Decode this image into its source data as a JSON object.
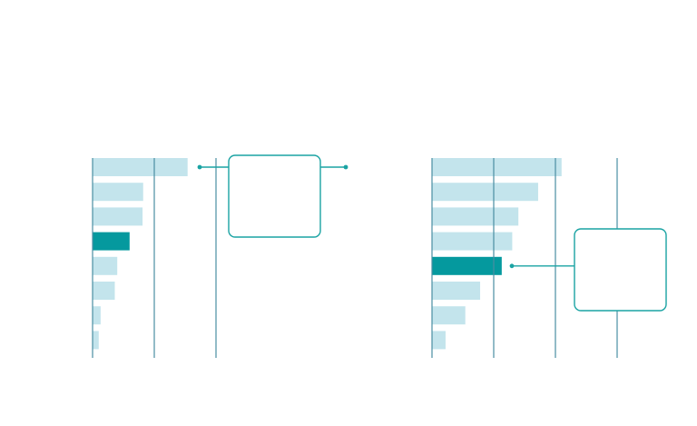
{
  "colors": {
    "background": "#ffffff",
    "bar": "#c3e4ec",
    "highlight": "#05999e",
    "axis": "#4a8ea2",
    "callout": "#1aa3a3"
  },
  "chart_data": [
    {
      "type": "bar",
      "orientation": "horizontal",
      "title": "",
      "xlabel": "",
      "ylabel": "",
      "grid": true,
      "xlim": [
        0,
        2
      ],
      "values": [
        1.54,
        0.82,
        0.81,
        0.6,
        0.4,
        0.36,
        0.13,
        0.1
      ],
      "highlight_index": 3,
      "callout_target_index": 0,
      "callout_text": ""
    },
    {
      "type": "bar",
      "orientation": "horizontal",
      "title": "",
      "xlabel": "",
      "ylabel": "",
      "grid": true,
      "xlim": [
        0,
        3
      ],
      "values": [
        2.1,
        1.72,
        1.4,
        1.3,
        1.13,
        0.78,
        0.54,
        0.22
      ],
      "highlight_index": 4,
      "callout_target_index": 4,
      "callout_text": ""
    }
  ]
}
